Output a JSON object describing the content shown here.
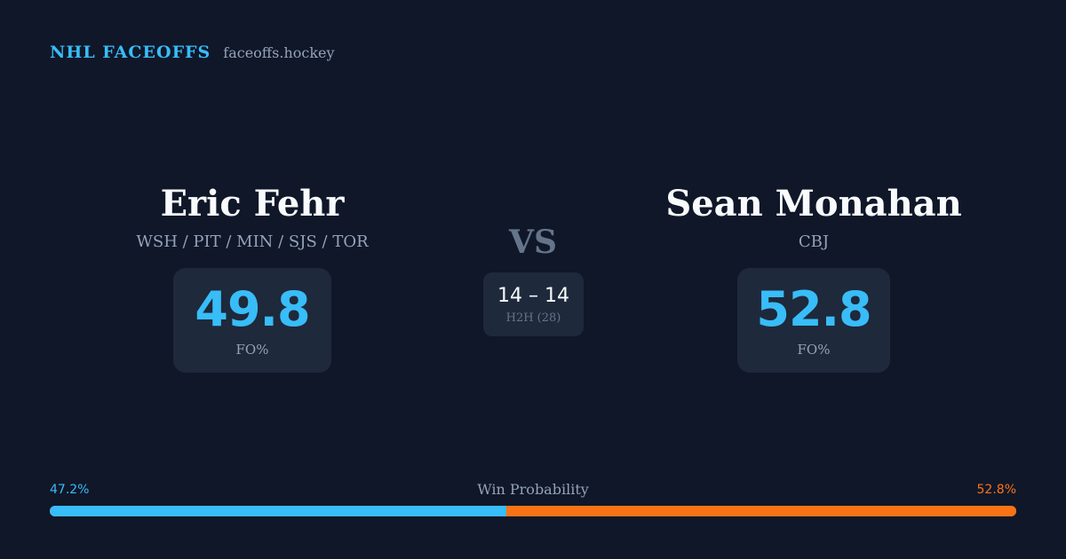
{
  "brand": {
    "name": "NHL FACEOFFS",
    "site": "faceoffs.hockey"
  },
  "player_left": {
    "name": "Eric Fehr",
    "teams": "WSH / PIT / MIN / SJS / TOR",
    "fo_pct": "49.8",
    "fo_label": "FO%"
  },
  "player_right": {
    "name": "Sean Monahan",
    "teams": "CBJ",
    "fo_pct": "52.8",
    "fo_label": "FO%"
  },
  "versus": {
    "label": "VS",
    "h2h_score": "14 – 14",
    "h2h_label": "H2H (28)"
  },
  "win_probability": {
    "title": "Win Probability",
    "left_label": "47.2%",
    "right_label": "52.8%",
    "left_value": 47.2,
    "right_value": 52.8,
    "left_color": "#38bdf8",
    "right_color": "#f97316"
  }
}
